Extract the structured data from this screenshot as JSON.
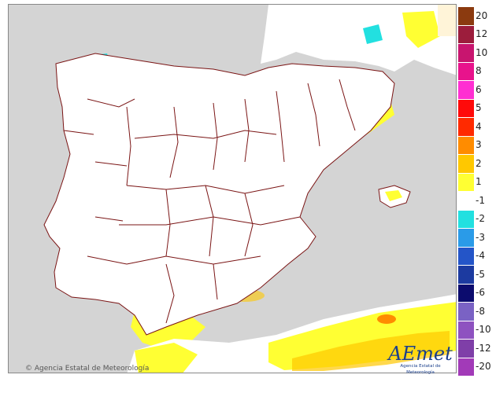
{
  "credit": "© Agencia Estatal de Meteorología",
  "logo": {
    "brand": "AEmet",
    "subtitle": "Agencia Estatal de Meteorología"
  },
  "legend": {
    "items": [
      {
        "label": "20",
        "color": "#8b3a0f"
      },
      {
        "label": "12",
        "color": "#9c1d3c"
      },
      {
        "label": "10",
        "color": "#c8156f"
      },
      {
        "label": "8",
        "color": "#e8138c"
      },
      {
        "label": "6",
        "color": "#ff2fd2"
      },
      {
        "label": "5",
        "color": "#ff0a0a"
      },
      {
        "label": "4",
        "color": "#ff2a00"
      },
      {
        "label": "3",
        "color": "#ff8c00"
      },
      {
        "label": "2",
        "color": "#ffc800"
      },
      {
        "label": "1",
        "color": "#ffff33"
      },
      {
        "label": "-1",
        "color": "#ffffff"
      },
      {
        "label": "-2",
        "color": "#22e0e0"
      },
      {
        "label": "-3",
        "color": "#2a9be8"
      },
      {
        "label": "-4",
        "color": "#2455c8"
      },
      {
        "label": "-5",
        "color": "#1c3aa0"
      },
      {
        "label": "-6",
        "color": "#0c0c6e"
      },
      {
        "label": "-8",
        "color": "#7a62c4"
      },
      {
        "label": "-10",
        "color": "#8e52c0"
      },
      {
        "label": "-12",
        "color": "#7f3fa8"
      },
      {
        "label": "-20",
        "color": "#a23ab8"
      }
    ]
  },
  "map_colors": {
    "sea": "#d4d4d4",
    "land": "#ffffff",
    "border": "#7a1414",
    "warm1": "#ffff33",
    "warm2": "#ffc800",
    "warm3": "#ff8c00",
    "cold1": "#22e0e0",
    "cold2": "#2a9be8",
    "cold3": "#2455c8",
    "cold4": "#7a62c4"
  }
}
